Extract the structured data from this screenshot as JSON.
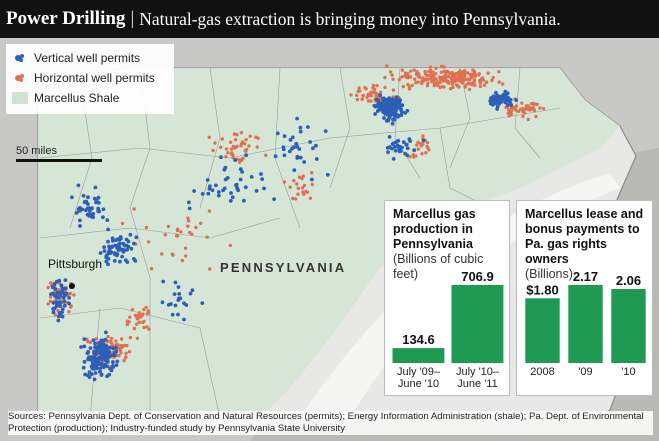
{
  "header": {
    "title": "Power Drilling",
    "separator": "|",
    "subtitle": "Natural-gas extraction is bringing money into Pennsylvania."
  },
  "legend": {
    "vertical": "Vertical well permits",
    "horizontal": "Horizontal well permits",
    "shale": "Marcellus Shale"
  },
  "colors": {
    "vertical": "#2d5fb8",
    "horizontal": "#e07052",
    "shale": "#cfe3d2",
    "bar": "#1e9a52"
  },
  "map": {
    "scale_label": "50 miles",
    "city_pittsburgh": "Pittsburgh",
    "state_label": "PENNSYLVANIA"
  },
  "chart_data": [
    {
      "type": "bar",
      "title": "Marcellus gas production in Pennsylvania",
      "unit": "(Billions of cubic feet)",
      "categories": [
        [
          "July '09–",
          "June '10"
        ],
        [
          "July '10–",
          "June '11"
        ]
      ],
      "values": [
        134.6,
        706.9
      ],
      "labels": [
        "134.6",
        "706.9"
      ],
      "ylim": [
        0,
        706.9
      ]
    },
    {
      "type": "bar",
      "title": "Marcellus lease and bonus payments to Pa. gas rights owners",
      "unit": "(Billions)",
      "categories": [
        [
          "2008"
        ],
        [
          "'09"
        ],
        [
          "'10"
        ]
      ],
      "values": [
        1.8,
        2.17,
        2.06
      ],
      "labels": [
        "$1.80",
        "2.17",
        "2.06"
      ],
      "ylim": [
        0,
        2.17
      ]
    }
  ],
  "sources": "Sources: Pennsylvania Dept. of Conservation and Natural Resources (permits); Energy Information Administration (shale); Pa. Dept. of Environmental Protection (production); Industry-funded study by Pennsylvania State University"
}
